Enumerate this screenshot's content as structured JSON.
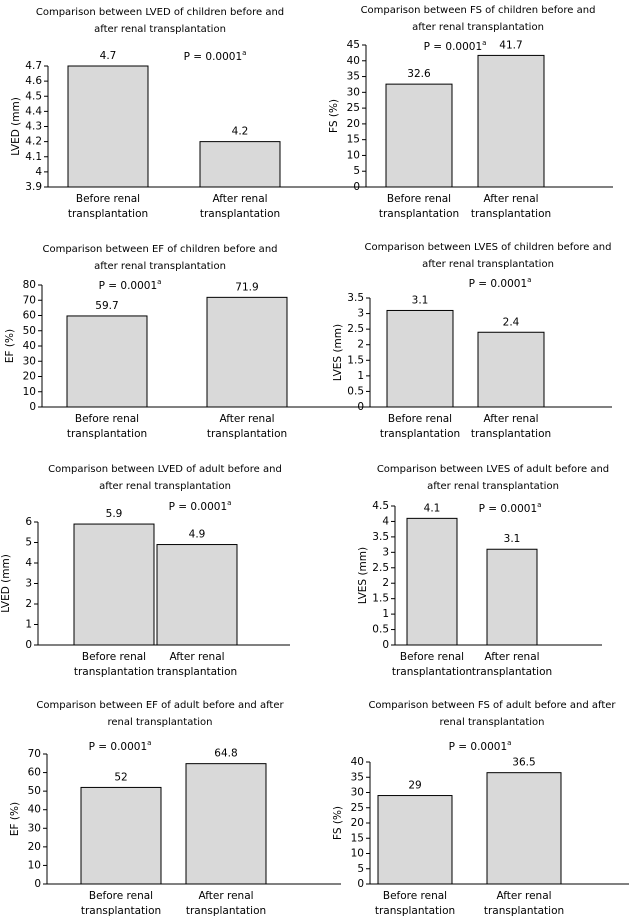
{
  "chart_data": [
    {
      "type": "bar",
      "title": [
        "Comparison between LVED of children before and",
        "after renal transplantation"
      ],
      "ylabel": "LVED (mm)",
      "annotation": "P = 0.0001",
      "annotation_mark": "a",
      "categories": [
        [
          "Before renal",
          "transplantation"
        ],
        [
          "After renal",
          "transplantation"
        ]
      ],
      "values": [
        4.7,
        4.2
      ],
      "color": "#d9d9d9",
      "ylim": [
        3.9,
        4.7
      ],
      "yticks": [
        3.9,
        4,
        4.1,
        4.2,
        4.3,
        4.4,
        4.5,
        4.6,
        4.7
      ]
    },
    {
      "type": "bar",
      "title": [
        "Comparison between FS of children before and",
        "after renal transplantation"
      ],
      "ylabel": "FS (%)",
      "annotation": "P = 0.0001",
      "annotation_mark": "a",
      "categories": [
        [
          "Before renal",
          "transplantation"
        ],
        [
          "After renal",
          "transplantation"
        ]
      ],
      "values": [
        32.6,
        41.7
      ],
      "color": "#d9d9d9",
      "ylim": [
        0,
        45
      ],
      "yticks": [
        0,
        5,
        10,
        15,
        20,
        25,
        30,
        35,
        40,
        45
      ]
    },
    {
      "type": "bar",
      "title": [
        "Comparison between EF of children before and",
        "after renal transplantation"
      ],
      "ylabel": "EF (%)",
      "annotation": "P = 0.0001",
      "annotation_mark": "a",
      "categories": [
        [
          "Before renal",
          "transplantation"
        ],
        [
          "After renal",
          "transplantation"
        ]
      ],
      "values": [
        59.7,
        71.9
      ],
      "color": "#d9d9d9",
      "ylim": [
        0,
        80
      ],
      "yticks": [
        0,
        10,
        20,
        30,
        40,
        50,
        60,
        70,
        80
      ]
    },
    {
      "type": "bar",
      "title": [
        "Comparison between LVES of children before and",
        "after renal transplantation"
      ],
      "ylabel": "LVES (mm)",
      "annotation": "P = 0.0001",
      "annotation_mark": "a",
      "categories": [
        [
          "Before renal",
          "transplantation"
        ],
        [
          "After renal",
          "transplantation"
        ]
      ],
      "values": [
        3.1,
        2.4
      ],
      "color": "#d9d9d9",
      "ylim": [
        0,
        3.5
      ],
      "yticks": [
        0,
        0.5,
        1,
        1.5,
        2,
        2.5,
        3,
        3.5
      ]
    },
    {
      "type": "bar",
      "title": [
        "Comparison between LVED of adult before and",
        "after renal transplantation"
      ],
      "ylabel": "LVED (mm)",
      "annotation": "P = 0.0001",
      "annotation_mark": "a",
      "categories": [
        [
          "Before renal",
          "transplantation"
        ],
        [
          "After renal",
          "transplantation"
        ]
      ],
      "values": [
        5.9,
        4.9
      ],
      "color": "#d9d9d9",
      "ylim": [
        0,
        6
      ],
      "yticks": [
        0,
        1,
        2,
        3,
        4,
        5,
        6
      ]
    },
    {
      "type": "bar",
      "title": [
        "Comparison between LVES of adult before and",
        "after renal transplantation"
      ],
      "ylabel": "LVES (mm)",
      "annotation": "P = 0.0001",
      "annotation_mark": "a",
      "categories": [
        [
          "Before renal",
          "transplantation"
        ],
        [
          "After renal",
          "transplantation"
        ]
      ],
      "values": [
        4.1,
        3.1
      ],
      "color": "#d9d9d9",
      "ylim": [
        0,
        4.5
      ],
      "yticks": [
        0,
        0.5,
        1,
        1.5,
        2,
        2.5,
        3,
        3.5,
        4,
        4.5
      ]
    },
    {
      "type": "bar",
      "title": [
        "Comparison between EF of adult before and after",
        "renal transplantation"
      ],
      "ylabel": "EF (%)",
      "annotation": "P = 0.0001",
      "annotation_mark": "a",
      "categories": [
        [
          "Before renal",
          "transplantation"
        ],
        [
          "After renal",
          "transplantation"
        ]
      ],
      "values": [
        52,
        64.8
      ],
      "color": "#d9d9d9",
      "ylim": [
        0,
        70
      ],
      "yticks": [
        0,
        10,
        20,
        30,
        40,
        50,
        60,
        70
      ]
    },
    {
      "type": "bar",
      "title": [
        "Comparison between FS of adult before and after",
        "renal transplantation"
      ],
      "ylabel": "FS (%)",
      "annotation": "P = 0.0001",
      "annotation_mark": "a",
      "categories": [
        [
          "Before renal",
          "transplantation"
        ],
        [
          "After renal",
          "transplantation"
        ]
      ],
      "values": [
        29,
        36.5
      ],
      "color": "#d9d9d9",
      "ylim": [
        0,
        40
      ],
      "yticks": [
        0,
        5,
        10,
        15,
        20,
        25,
        30,
        35,
        40
      ]
    }
  ]
}
